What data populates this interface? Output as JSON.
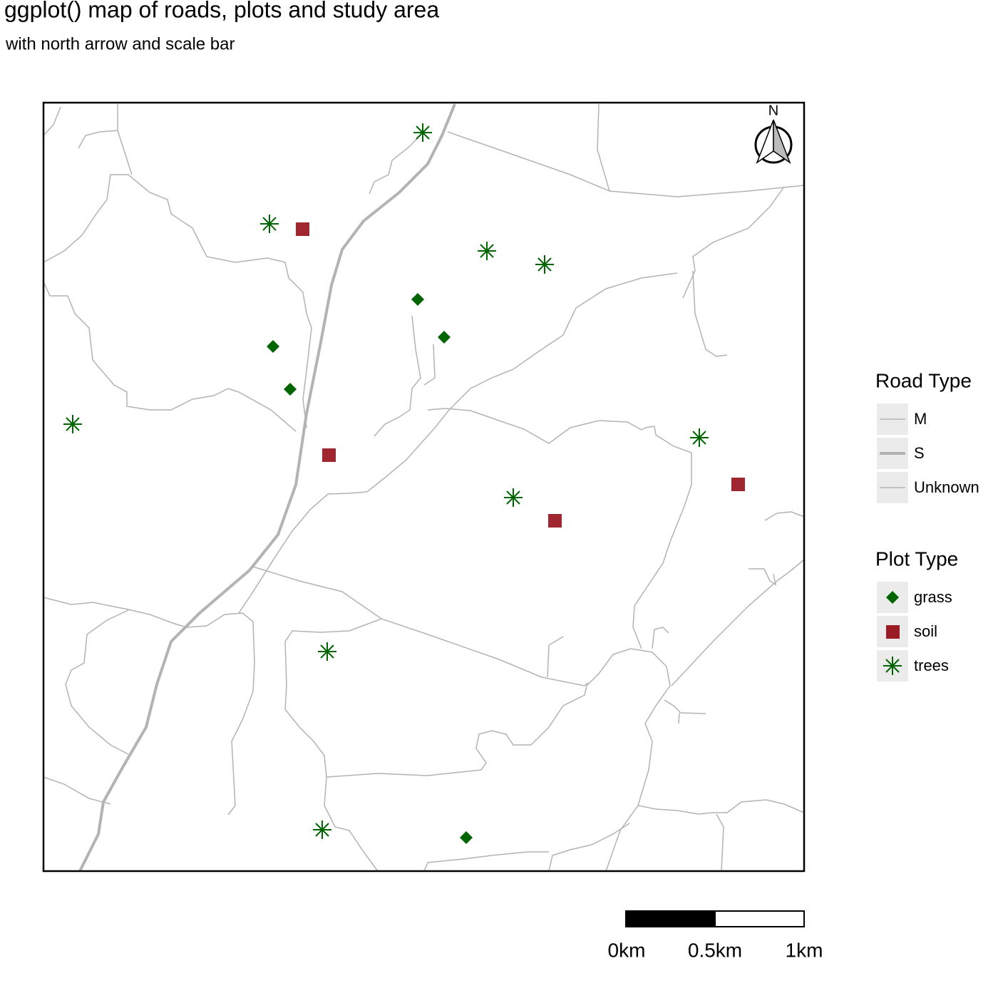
{
  "title": "ggplot() map of roads, plots and study area",
  "subtitle": "with north arrow and scale bar",
  "north_label": "N",
  "legends": [
    {
      "title": "Road Type",
      "entries": [
        "M",
        "S",
        "Unknown"
      ]
    },
    {
      "title": "Plot Type",
      "entries": [
        "grass",
        "soil",
        "trees"
      ]
    }
  ],
  "scale_bar": {
    "labels": [
      "0km",
      "0.5km",
      "1km"
    ]
  }
}
